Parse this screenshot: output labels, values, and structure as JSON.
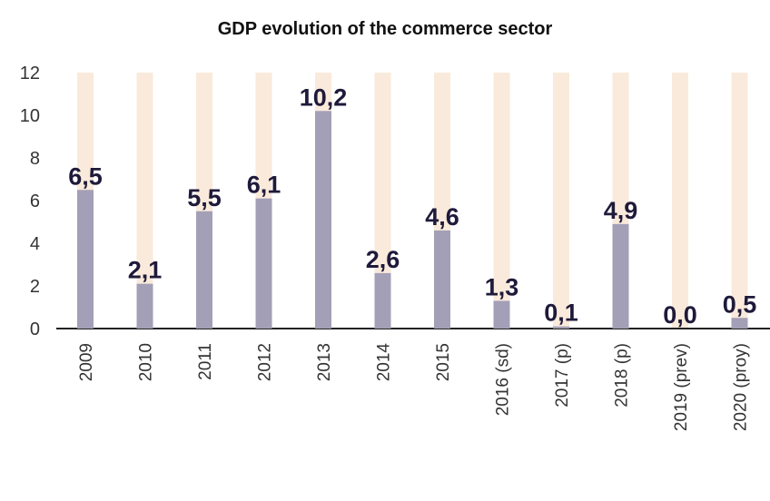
{
  "chart_data": {
    "type": "bar",
    "title": "GDP evolution of the commerce sector",
    "categories": [
      "2009",
      "2010",
      "2011",
      "2012",
      "2013",
      "2014",
      "2015",
      "2016 (sd)",
      "2017 (p)",
      "2018 (p)",
      "2019 (prev)",
      "2020 (proy)"
    ],
    "values": [
      6.5,
      2.1,
      5.5,
      6.1,
      10.2,
      2.6,
      4.6,
      1.3,
      0.1,
      4.9,
      0.0,
      0.5
    ],
    "value_labels": [
      "6,5",
      "2,1",
      "5,5",
      "6,1",
      "10,2",
      "2,6",
      "4,6",
      "1,3",
      "0,1",
      "4,9",
      "0,0",
      "0,5"
    ],
    "color": "#a39fb6",
    "background_color": "#f9eadb",
    "ylim": [
      0,
      12
    ],
    "yticks": [
      0,
      2,
      4,
      6,
      8,
      10,
      12
    ]
  }
}
